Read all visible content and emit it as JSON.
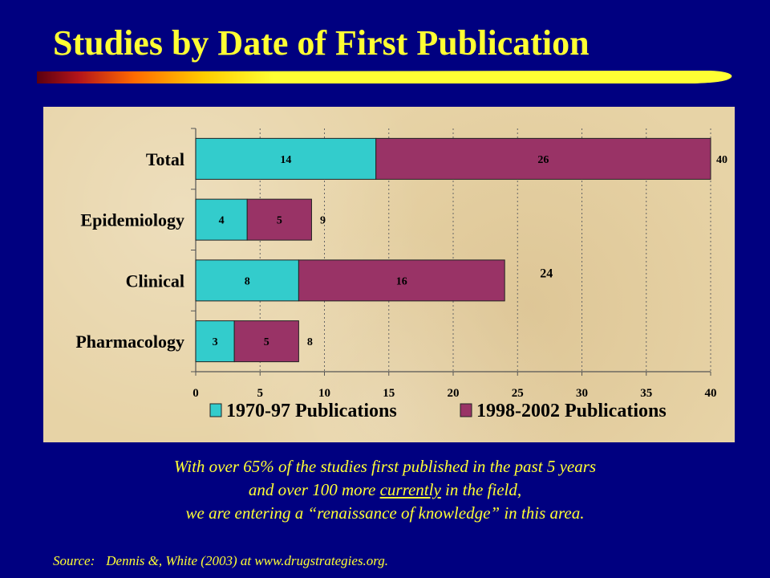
{
  "slide": {
    "title": "Studies by Date of First Publication",
    "caption_line1": "With over 65% of the studies first published in the past 5 years",
    "caption_line2_pre": "and over 100  more ",
    "caption_line2_u": "currently",
    "caption_line2_post": " in the field,",
    "caption_line3": "we are entering a “renaissance of knowledge” in this area.",
    "source_label": "Source:",
    "source_text": "Dennis &, White (2003) at www.drugstrategies.org.",
    "colors": {
      "background": "#000080",
      "title": "#ffff33"
    }
  },
  "chart_data": {
    "type": "bar",
    "orientation": "horizontal",
    "stacked": true,
    "categories": [
      "Total",
      "Epidemiology",
      "Clinical",
      "Pharmacology"
    ],
    "series": [
      {
        "name": "1970-97 Publications",
        "values": [
          14,
          4,
          8,
          3
        ],
        "color": "#33cccc"
      },
      {
        "name": "1998-2002 Publications",
        "values": [
          26,
          5,
          16,
          5
        ],
        "color": "#993366"
      }
    ],
    "totals": [
      40,
      9,
      24,
      8
    ],
    "xlim": [
      0,
      40
    ],
    "xticks": [
      0,
      5,
      10,
      15,
      20,
      25,
      30,
      35,
      40
    ],
    "grid": "vertical dotted",
    "legend": "bottom"
  }
}
